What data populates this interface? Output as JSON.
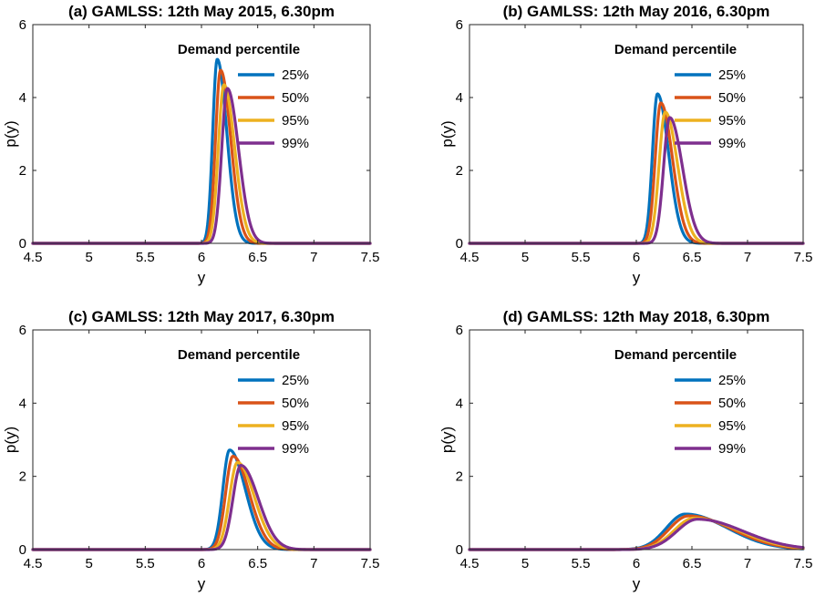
{
  "chart_data": [
    {
      "type": "line",
      "title": "(a) GAMLSS: 12th May 2015, 6.30pm",
      "xlabel": "y",
      "ylabel": "p(y)",
      "xlim": [
        4.5,
        7.5
      ],
      "ylim": [
        0,
        6
      ],
      "xticks": [
        "4.5",
        "5",
        "5.5",
        "6",
        "6.5",
        "7",
        "7.5"
      ],
      "yticks": [
        "0",
        "2",
        "4",
        "6"
      ],
      "legend_title": "Demand percentile",
      "series": [
        {
          "name": "25%",
          "color": "#0072BD",
          "peak_x": 6.14,
          "peak_y": 5.05,
          "left_width": 0.04,
          "right_width": 0.085
        },
        {
          "name": "50%",
          "color": "#D95319",
          "peak_x": 6.17,
          "peak_y": 4.75,
          "left_width": 0.045,
          "right_width": 0.09
        },
        {
          "name": "95%",
          "color": "#EDB120",
          "peak_x": 6.2,
          "peak_y": 4.35,
          "left_width": 0.05,
          "right_width": 0.095
        },
        {
          "name": "99%",
          "color": "#7E2F8E",
          "peak_x": 6.23,
          "peak_y": 4.25,
          "left_width": 0.05,
          "right_width": 0.1
        }
      ]
    },
    {
      "type": "line",
      "title": "(b) GAMLSS: 12th May 2016, 6.30pm",
      "xlabel": "y",
      "ylabel": "p(y)",
      "xlim": [
        4.5,
        7.5
      ],
      "ylim": [
        0,
        6
      ],
      "xticks": [
        "4.5",
        "5",
        "5.5",
        "6",
        "6.5",
        "7",
        "7.5"
      ],
      "yticks": [
        "0",
        "2",
        "4",
        "6"
      ],
      "legend_title": "Demand percentile",
      "series": [
        {
          "name": "25%",
          "color": "#0072BD",
          "peak_x": 6.19,
          "peak_y": 4.1,
          "left_width": 0.045,
          "right_width": 0.1
        },
        {
          "name": "50%",
          "color": "#D95319",
          "peak_x": 6.22,
          "peak_y": 3.85,
          "left_width": 0.05,
          "right_width": 0.105
        },
        {
          "name": "95%",
          "color": "#EDB120",
          "peak_x": 6.26,
          "peak_y": 3.6,
          "left_width": 0.055,
          "right_width": 0.11
        },
        {
          "name": "99%",
          "color": "#7E2F8E",
          "peak_x": 6.3,
          "peak_y": 3.45,
          "left_width": 0.055,
          "right_width": 0.115
        }
      ]
    },
    {
      "type": "line",
      "title": "(c) GAMLSS: 12th May 2017, 6.30pm",
      "xlabel": "y",
      "ylabel": "p(y)",
      "xlim": [
        4.5,
        7.5
      ],
      "ylim": [
        0,
        6
      ],
      "xticks": [
        "4.5",
        "5",
        "5.5",
        "6",
        "6.5",
        "7",
        "7.5"
      ],
      "yticks": [
        "0",
        "2",
        "4",
        "6"
      ],
      "legend_title": "Demand percentile",
      "series": [
        {
          "name": "25%",
          "color": "#0072BD",
          "peak_x": 6.25,
          "peak_y": 2.72,
          "left_width": 0.06,
          "right_width": 0.14
        },
        {
          "name": "50%",
          "color": "#D95319",
          "peak_x": 6.28,
          "peak_y": 2.55,
          "left_width": 0.065,
          "right_width": 0.145
        },
        {
          "name": "95%",
          "color": "#EDB120",
          "peak_x": 6.32,
          "peak_y": 2.38,
          "left_width": 0.07,
          "right_width": 0.15
        },
        {
          "name": "99%",
          "color": "#7E2F8E",
          "peak_x": 6.35,
          "peak_y": 2.3,
          "left_width": 0.07,
          "right_width": 0.155
        }
      ]
    },
    {
      "type": "line",
      "title": "(d) GAMLSS: 12th May 2018, 6.30pm",
      "xlabel": "y",
      "ylabel": "p(y)",
      "xlim": [
        4.5,
        7.5
      ],
      "ylim": [
        0,
        6
      ],
      "xticks": [
        "4.5",
        "5",
        "5.5",
        "6",
        "6.5",
        "7",
        "7.5"
      ],
      "yticks": [
        "0",
        "2",
        "4",
        "6"
      ],
      "legend_title": "Demand percentile",
      "series": [
        {
          "name": "25%",
          "color": "#0072BD",
          "peak_x": 6.44,
          "peak_y": 0.97,
          "left_width": 0.17,
          "right_width": 0.38
        },
        {
          "name": "50%",
          "color": "#D95319",
          "peak_x": 6.47,
          "peak_y": 0.92,
          "left_width": 0.175,
          "right_width": 0.39
        },
        {
          "name": "95%",
          "color": "#EDB120",
          "peak_x": 6.52,
          "peak_y": 0.86,
          "left_width": 0.18,
          "right_width": 0.4
        },
        {
          "name": "99%",
          "color": "#7E2F8E",
          "peak_x": 6.55,
          "peak_y": 0.83,
          "left_width": 0.185,
          "right_width": 0.41
        }
      ]
    }
  ]
}
